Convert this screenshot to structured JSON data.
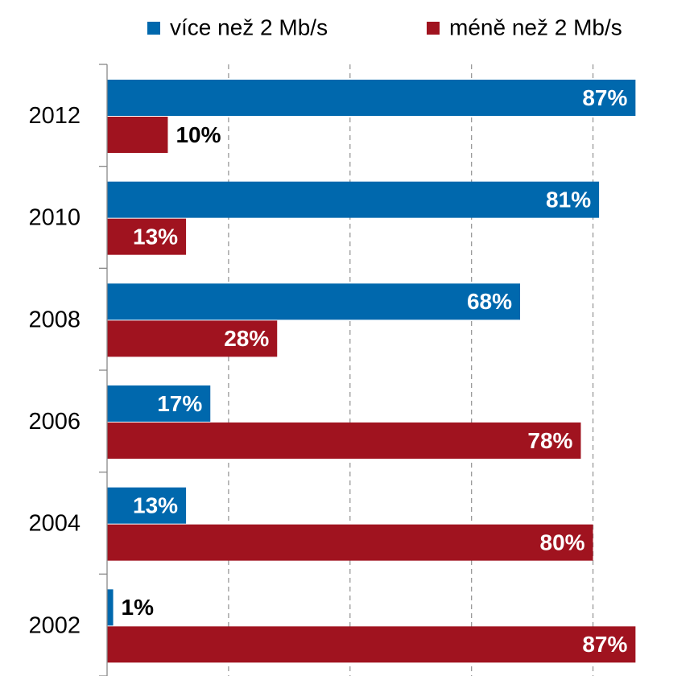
{
  "chart_data": {
    "type": "barh",
    "categories": [
      "2012",
      "2010",
      "2008",
      "2006",
      "2004",
      "2002"
    ],
    "series": [
      {
        "name": "více než 2 Mb/s",
        "color": "#0068ad",
        "values": [
          87,
          81,
          68,
          17,
          13,
          1
        ],
        "value_labels": [
          "87%",
          "81%",
          "68%",
          "17%",
          "13%",
          "1%"
        ]
      },
      {
        "name": "méně než 2 Mb/s",
        "color": "#a0131f",
        "values": [
          10,
          13,
          28,
          78,
          80,
          87
        ],
        "value_labels": [
          "10%",
          "13%",
          "28%",
          "78%",
          "80%",
          "87%"
        ]
      }
    ],
    "xlim": [
      0,
      90
    ],
    "xticks": [
      0,
      20,
      40,
      60,
      80
    ],
    "grid": true,
    "legend": "top"
  }
}
